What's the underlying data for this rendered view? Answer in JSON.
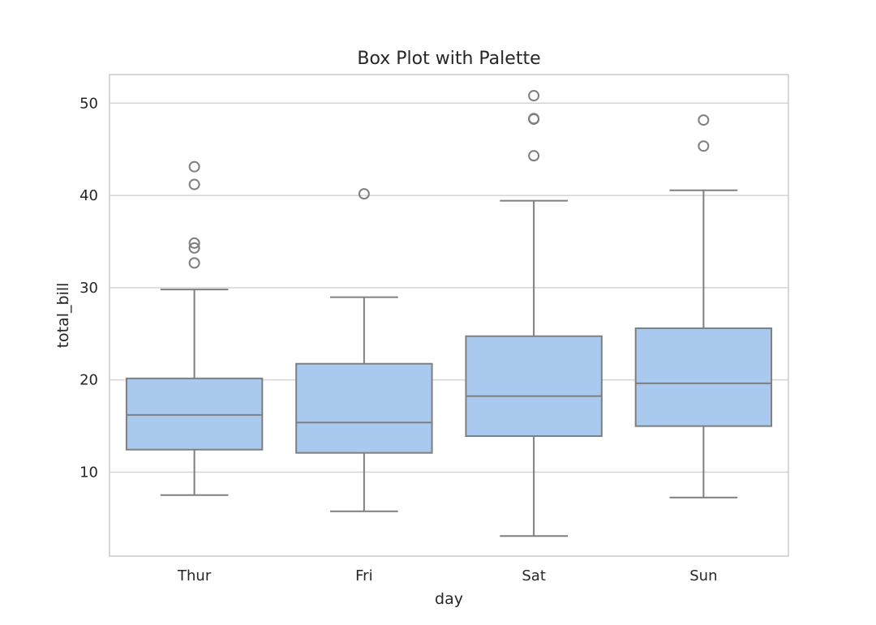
{
  "chart_data": {
    "type": "box",
    "title": "Box Plot with Palette",
    "xlabel": "day",
    "ylabel": "total_bill",
    "categories": [
      "Thur",
      "Fri",
      "Sat",
      "Sun"
    ],
    "ylim": [
      0.9,
      53.1
    ],
    "yticks": [
      10,
      20,
      30,
      40,
      50
    ],
    "grid": true,
    "legend": "none",
    "colors": {
      "box_fill": "#a9c9ee",
      "box_edge": "#7f7f7f",
      "grid": "#d4d4d4",
      "frame": "#cccccc"
    },
    "boxes": [
      {
        "category": "Thur",
        "whisker_low": 7.51,
        "q1": 12.44,
        "median": 16.2,
        "q3": 20.16,
        "whisker_high": 29.8,
        "outliers": [
          32.68,
          34.3,
          34.83,
          41.19,
          43.11
        ]
      },
      {
        "category": "Fri",
        "whisker_low": 5.75,
        "q1": 12.09,
        "median": 15.38,
        "q3": 21.75,
        "whisker_high": 28.97,
        "outliers": [
          40.17
        ]
      },
      {
        "category": "Sat",
        "whisker_low": 3.07,
        "q1": 13.91,
        "median": 18.24,
        "q3": 24.74,
        "whisker_high": 39.42,
        "outliers": [
          44.3,
          48.27,
          48.33,
          50.81
        ]
      },
      {
        "category": "Sun",
        "whisker_low": 7.25,
        "q1": 14.99,
        "median": 19.63,
        "q3": 25.6,
        "whisker_high": 40.55,
        "outliers": [
          45.35,
          48.17
        ]
      }
    ]
  }
}
